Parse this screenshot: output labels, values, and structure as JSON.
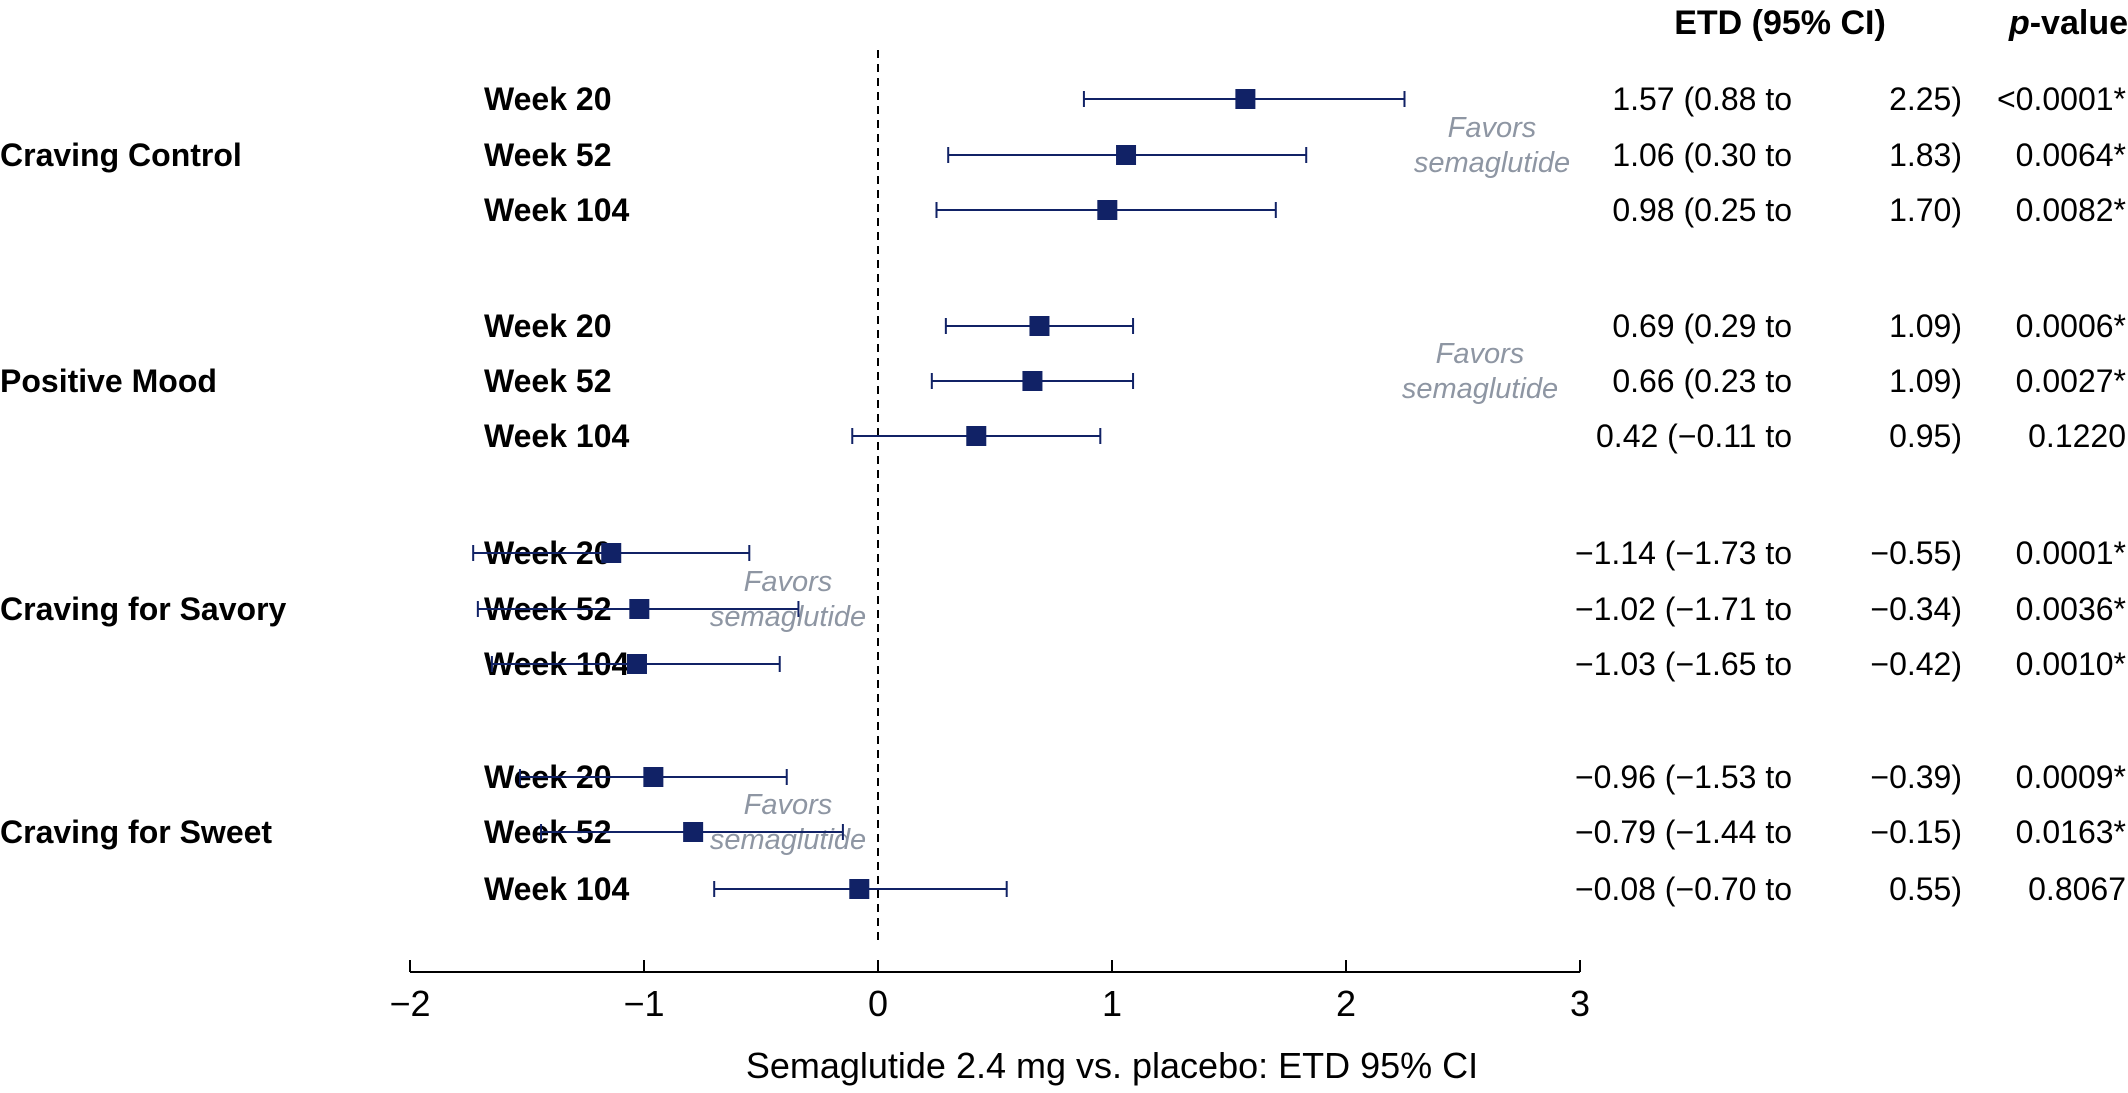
{
  "columns": {
    "etd_header": "ETD (95% CI)",
    "pvalue_header_italic": "p",
    "pvalue_header_rest": "-value"
  },
  "favors_text": [
    "Favors",
    "semaglutide"
  ],
  "colors": {
    "marker": "#112266",
    "line": "#112266",
    "favors": "#8e96a3"
  },
  "chart_data": {
    "type": "forest",
    "xlabel": "Semaglutide 2.4 mg vs. placebo: ETD 95% CI",
    "xlim": [
      -2,
      3
    ],
    "xticks": [
      -2,
      -1,
      0,
      1,
      2,
      3
    ],
    "xtick_labels": [
      "−2",
      "−1",
      "0",
      "1",
      "2",
      "3"
    ],
    "reference_line": 0,
    "groups": [
      {
        "name": "Craving Control",
        "favors_side": "right",
        "rows": [
          {
            "label": "Week 20",
            "etd": 1.57,
            "lo": 0.88,
            "hi": 2.25,
            "ci_text": "1.57 (0.88 to",
            "hi_text": "2.25)",
            "p": "<0.0001*"
          },
          {
            "label": "Week 52",
            "etd": 1.06,
            "lo": 0.3,
            "hi": 1.83,
            "ci_text": "1.06 (0.30 to",
            "hi_text": "1.83)",
            "p": "0.0064*"
          },
          {
            "label": "Week 104",
            "etd": 0.98,
            "lo": 0.25,
            "hi": 1.7,
            "ci_text": "0.98 (0.25 to",
            "hi_text": "1.70)",
            "p": "0.0082*"
          }
        ]
      },
      {
        "name": "Positive Mood",
        "favors_side": "right",
        "rows": [
          {
            "label": "Week 20",
            "etd": 0.69,
            "lo": 0.29,
            "hi": 1.09,
            "ci_text": "0.69 (0.29 to",
            "hi_text": "1.09)",
            "p": "0.0006*"
          },
          {
            "label": "Week 52",
            "etd": 0.66,
            "lo": 0.23,
            "hi": 1.09,
            "ci_text": "0.66 (0.23 to",
            "hi_text": "1.09)",
            "p": "0.0027*"
          },
          {
            "label": "Week 104",
            "etd": 0.42,
            "lo": -0.11,
            "hi": 0.95,
            "ci_text": "0.42 (−0.11 to",
            "hi_text": "0.95)",
            "p": "0.1220"
          }
        ]
      },
      {
        "name": "Craving for Savory",
        "favors_side": "left",
        "rows": [
          {
            "label": "Week 20",
            "etd": -1.14,
            "lo": -1.73,
            "hi": -0.55,
            "ci_text": "−1.14 (−1.73 to",
            "hi_text": "−0.55)",
            "p": "0.0001*"
          },
          {
            "label": "Week 52",
            "etd": -1.02,
            "lo": -1.71,
            "hi": -0.34,
            "ci_text": "−1.02 (−1.71 to",
            "hi_text": "−0.34)",
            "p": "0.0036*"
          },
          {
            "label": "Week 104",
            "etd": -1.03,
            "lo": -1.65,
            "hi": -0.42,
            "ci_text": "−1.03 (−1.65 to",
            "hi_text": "−0.42)",
            "p": "0.0010*"
          }
        ]
      },
      {
        "name": "Craving for Sweet",
        "favors_side": "left",
        "rows": [
          {
            "label": "Week 20",
            "etd": -0.96,
            "lo": -1.53,
            "hi": -0.39,
            "ci_text": "−0.96 (−1.53 to",
            "hi_text": "−0.39)",
            "p": "0.0009*"
          },
          {
            "label": "Week 52",
            "etd": -0.79,
            "lo": -1.44,
            "hi": -0.15,
            "ci_text": "−0.79 (−1.44 to",
            "hi_text": "−0.15)",
            "p": "0.0163*"
          },
          {
            "label": "Week 104",
            "etd": -0.08,
            "lo": -0.7,
            "hi": 0.55,
            "ci_text": "−0.08 (−0.70 to",
            "hi_text": "0.55)",
            "p": "0.8067"
          }
        ]
      }
    ]
  }
}
